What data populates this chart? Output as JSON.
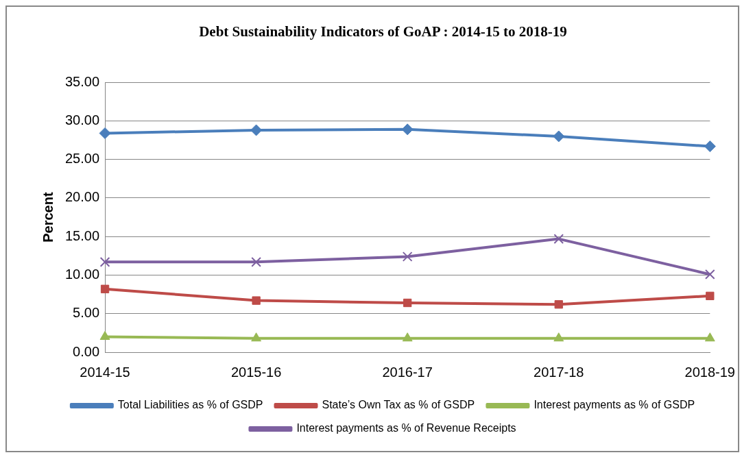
{
  "chart_data": {
    "type": "line",
    "title": "Debt Sustainability Indicators of GoAP : 2014-15 to 2018-19",
    "ylabel": "Percent",
    "categories": [
      "2014-15",
      "2015-16",
      "2016-17",
      "2017-18",
      "2018-19"
    ],
    "series": [
      {
        "name": "Total Liabilities as % of GSDP",
        "color": "#4a7ebb",
        "marker": "diamond",
        "values": [
          28.4,
          28.8,
          28.9,
          28.0,
          26.7
        ]
      },
      {
        "name": "State’s Own Tax as % of GSDP",
        "color": "#be4b48",
        "marker": "square",
        "values": [
          8.2,
          6.7,
          6.4,
          6.2,
          7.3
        ]
      },
      {
        "name": "Interest payments as % of GSDP",
        "color": "#98b954",
        "marker": "triangle",
        "values": [
          2.0,
          1.8,
          1.8,
          1.8,
          1.8
        ]
      },
      {
        "name": "Interest payments as % of Revenue Receipts",
        "color": "#7d60a0",
        "marker": "cross",
        "values": [
          11.7,
          11.7,
          12.4,
          14.7,
          10.1
        ]
      }
    ],
    "ylim": [
      0,
      35
    ],
    "yticks": [
      {
        "value": 0,
        "label": "0.00"
      },
      {
        "value": 5,
        "label": "5.00"
      },
      {
        "value": 10,
        "label": "10.00"
      },
      {
        "value": 15,
        "label": "15.00"
      },
      {
        "value": 20,
        "label": "20.00"
      },
      {
        "value": 25,
        "label": "25.00"
      },
      {
        "value": 30,
        "label": "30.00"
      },
      {
        "value": 35,
        "label": "35.00"
      }
    ],
    "grid": "y",
    "legend": "bottom",
    "line_style": "solid"
  }
}
